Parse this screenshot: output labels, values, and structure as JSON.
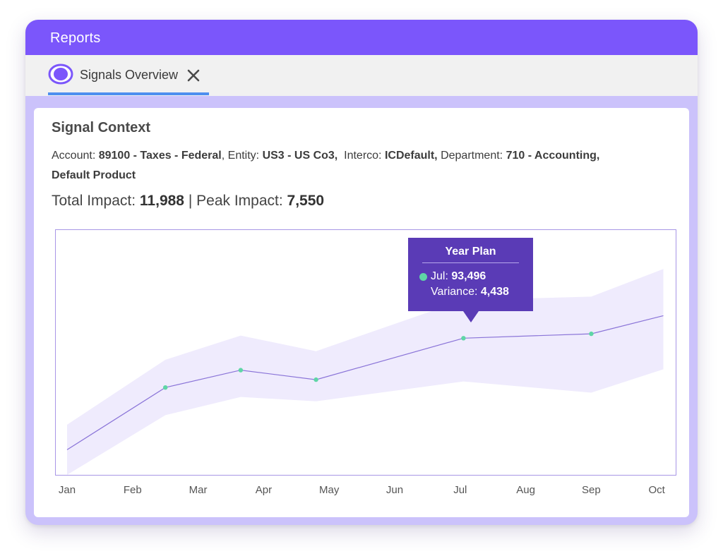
{
  "window": {
    "title": "Reports"
  },
  "tab": {
    "label": "Signals Overview",
    "icon": "target-circle-icon",
    "close_icon": "close-icon"
  },
  "card": {
    "title": "Signal Context",
    "context": {
      "account_label": "Account:",
      "account_value": "89100 - Taxes - Federal",
      "entity_label": "Entity:",
      "entity_value": "US3 - US Co3,",
      "interco_label": "Interco:",
      "interco_value": "ICDefault,",
      "department_label": "Department:",
      "department_value": "710 - Accounting,",
      "product_value": "Default Product"
    },
    "impact": {
      "total_label": "Total Impact:",
      "total_value": "11,988",
      "separator": "|",
      "peak_label": "Peak Impact:",
      "peak_value": "7,550"
    }
  },
  "tooltip": {
    "title": "Year Plan",
    "row1_label": "Jul:",
    "row1_value": "93,496",
    "row2_label": "Variance:",
    "row2_value": "4,438",
    "dot_color": "#5fd6a6"
  },
  "colors": {
    "titlebar": "#7b56fb",
    "accent_underline": "#4e8fef",
    "band": "#efebfd",
    "line": "#8a74d8",
    "point": "#5fd6a6",
    "tooltip_bg": "#5a3bb6"
  },
  "chart_data": {
    "type": "line",
    "categories": [
      "Jan",
      "Feb",
      "Mar",
      "Apr",
      "May",
      "Jun",
      "Jul",
      "Aug",
      "Sep",
      "Oct"
    ],
    "series": [
      {
        "x": [
          0,
          1.5,
          2.65,
          3.8,
          6.05,
          8.0,
          9.1
        ],
        "values": [
          80.6,
          87.8,
          89.8,
          88.7,
          93.5,
          94.0,
          96.1
        ]
      }
    ],
    "band": {
      "x": [
        0,
        1.5,
        2.65,
        3.8,
        6.05,
        8.0,
        9.1
      ],
      "upper": [
        83.5,
        91.0,
        93.8,
        92.0,
        97.9,
        98.3,
        101.5
      ],
      "lower": [
        77.7,
        84.6,
        86.7,
        86.2,
        88.5,
        87.2,
        89.9
      ]
    },
    "highlight": {
      "category": "Jul",
      "value": 93.496
    },
    "ylim": [
      77.7,
      106.0
    ],
    "grid": false,
    "legend": "none"
  }
}
